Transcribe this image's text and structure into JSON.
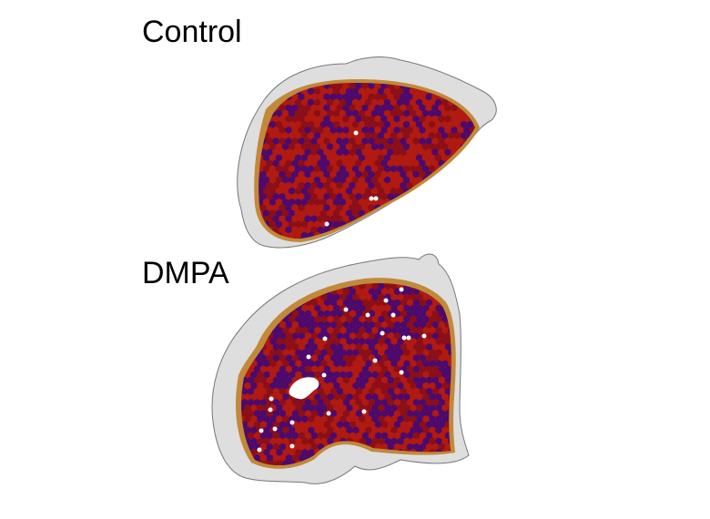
{
  "panels": [
    {
      "title": "Control"
    },
    {
      "title": "DMPA"
    }
  ],
  "colors": {
    "tissue_outline": "#777777",
    "tissue_background": "#dcdcdc",
    "edge_spots": "#c08a3a",
    "spot_red": "#b01a10",
    "spot_dark_red": "#8a0f18",
    "spot_purple": "#4a0a6e",
    "spot_white": "#ffffff"
  }
}
